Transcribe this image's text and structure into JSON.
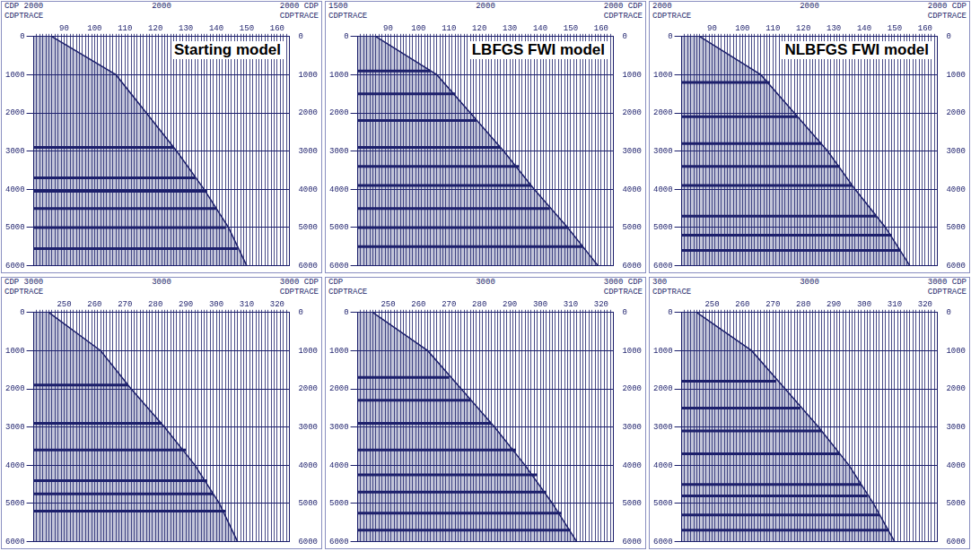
{
  "chart_data": [
    {
      "type": "line",
      "title": "Starting model",
      "header": {
        "left": "CDP 2000",
        "center": "2000",
        "right": "2000 CDP"
      },
      "x_label": "CDPTRACE",
      "xlim": [
        80,
        164
      ],
      "xticks": [
        90,
        100,
        110,
        120,
        130,
        140,
        150,
        160
      ],
      "traces": [
        81,
        82,
        83,
        84,
        85,
        86,
        87,
        88,
        89,
        90,
        91,
        92,
        93,
        94,
        95,
        96,
        97,
        98,
        99,
        100,
        101,
        102,
        103,
        104,
        105,
        106,
        107,
        108,
        109,
        110,
        111,
        112,
        113,
        114,
        115,
        116,
        117,
        118,
        119,
        120,
        121,
        122,
        123,
        124,
        125,
        126,
        127,
        128,
        129,
        130,
        131,
        132,
        133,
        134,
        135,
        136,
        137,
        138,
        139,
        140,
        141,
        142,
        143,
        144,
        145,
        146,
        147,
        148,
        149,
        150,
        151,
        152,
        153,
        154,
        155,
        156,
        157,
        158,
        159,
        160,
        161,
        162,
        163
      ],
      "ylim": [
        0,
        6000
      ],
      "yticks": [
        0,
        1000,
        2000,
        3000,
        4000,
        5000,
        6000
      ],
      "y2lim": [
        0,
        6000
      ],
      "y2ticks": [
        0,
        1000,
        2000,
        3000,
        4000,
        5000,
        6000
      ],
      "grid": true,
      "color": "#1c1f6b",
      "mute": {
        "x": [
          86,
          107,
          117,
          127,
          136,
          144,
          150
        ],
        "y": [
          0,
          1000,
          2000,
          3000,
          4000,
          5000,
          6000
        ]
      },
      "events": [
        {
          "y": 2900,
          "x_end": 126
        },
        {
          "y": 3700,
          "x_end": 133
        },
        {
          "y": 4050,
          "x_end": 137
        },
        {
          "y": 4500,
          "x_end": 140
        },
        {
          "y": 5000,
          "x_end": 143
        },
        {
          "y": 5550,
          "x_end": 147
        }
      ]
    },
    {
      "type": "line",
      "title": "LBFGS FWI  model",
      "header": {
        "left": "1500",
        "center": "2000",
        "right": "2000 CDP"
      },
      "x_label": "CDPTRACE",
      "xlim": [
        80,
        164
      ],
      "xticks": [
        90,
        100,
        110,
        120,
        130,
        140,
        150,
        160
      ],
      "traces": [
        81,
        82,
        83,
        84,
        85,
        86,
        87,
        88,
        89,
        90,
        91,
        92,
        93,
        94,
        95,
        96,
        97,
        98,
        99,
        100,
        101,
        102,
        103,
        104,
        105,
        106,
        107,
        108,
        109,
        110,
        111,
        112,
        113,
        114,
        115,
        116,
        117,
        118,
        119,
        120,
        121,
        122,
        123,
        124,
        125,
        126,
        127,
        128,
        129,
        130,
        131,
        132,
        133,
        134,
        135,
        136,
        137,
        138,
        139,
        140,
        141,
        142,
        143,
        144,
        145,
        146,
        147,
        148,
        149,
        150,
        151,
        152,
        153,
        154,
        155,
        156,
        157,
        158,
        159,
        160,
        161,
        162,
        163
      ],
      "ylim": [
        0,
        6000
      ],
      "yticks": [
        0,
        1000,
        2000,
        3000,
        4000,
        5000,
        6000
      ],
      "y2lim": [
        0,
        6000
      ],
      "y2ticks": [
        0,
        1000,
        2000,
        3000,
        4000,
        5000,
        6000
      ],
      "grid": true,
      "color": "#1c1f6b",
      "mute": {
        "x": [
          86,
          106,
          117,
          128,
          138,
          149,
          159
        ],
        "y": [
          0,
          1000,
          2000,
          3000,
          4000,
          5000,
          6000
        ]
      },
      "events": [
        {
          "y": 900,
          "x_end": 104
        },
        {
          "y": 1500,
          "x_end": 112
        },
        {
          "y": 2200,
          "x_end": 119
        },
        {
          "y": 2900,
          "x_end": 127
        },
        {
          "y": 3400,
          "x_end": 133
        },
        {
          "y": 3900,
          "x_end": 137
        },
        {
          "y": 4500,
          "x_end": 143
        },
        {
          "y": 5000,
          "x_end": 149
        },
        {
          "y": 5500,
          "x_end": 154
        }
      ]
    },
    {
      "type": "line",
      "title": "NLBFGS FWI model",
      "header": {
        "left": "2000",
        "center": "2000",
        "right": "2000 CDP"
      },
      "x_label": "CDPTRACE",
      "xlim": [
        80,
        164
      ],
      "xticks": [
        90,
        100,
        110,
        120,
        130,
        140,
        150,
        160
      ],
      "traces": [
        81,
        82,
        83,
        84,
        85,
        86,
        87,
        88,
        89,
        90,
        91,
        92,
        93,
        94,
        95,
        96,
        97,
        98,
        99,
        100,
        101,
        102,
        103,
        104,
        105,
        106,
        107,
        108,
        109,
        110,
        111,
        112,
        113,
        114,
        115,
        116,
        117,
        118,
        119,
        120,
        121,
        122,
        123,
        124,
        125,
        126,
        127,
        128,
        129,
        130,
        131,
        132,
        133,
        134,
        135,
        136,
        137,
        138,
        139,
        140,
        141,
        142,
        143,
        144,
        145,
        146,
        147,
        148,
        149,
        150,
        151,
        152,
        153,
        154,
        155,
        156,
        157,
        158,
        159,
        160,
        161,
        162,
        163
      ],
      "ylim": [
        0,
        6000
      ],
      "yticks": [
        0,
        1000,
        2000,
        3000,
        4000,
        5000,
        6000
      ],
      "y2lim": [
        0,
        6000
      ],
      "y2ticks": [
        0,
        1000,
        2000,
        3000,
        4000,
        5000,
        6000
      ],
      "grid": true,
      "color": "#1c1f6b",
      "mute": {
        "x": [
          86,
          106,
          117,
          128,
          137,
          147,
          155
        ],
        "y": [
          0,
          1000,
          2000,
          3000,
          4000,
          5000,
          6000
        ]
      },
      "events": [
        {
          "y": 1200,
          "x_end": 109
        },
        {
          "y": 2100,
          "x_end": 118
        },
        {
          "y": 2800,
          "x_end": 126
        },
        {
          "y": 3400,
          "x_end": 132
        },
        {
          "y": 3900,
          "x_end": 136
        },
        {
          "y": 4700,
          "x_end": 144
        },
        {
          "y": 5200,
          "x_end": 149
        },
        {
          "y": 5600,
          "x_end": 152
        }
      ]
    },
    {
      "type": "line",
      "header": {
        "left": "CDP 3000",
        "center": "3000",
        "right": "3000 CDP"
      },
      "x_label": "CDPTRACE",
      "xlim": [
        240,
        324
      ],
      "xticks": [
        250,
        260,
        270,
        280,
        290,
        300,
        310,
        320
      ],
      "traces": [
        241,
        242,
        243,
        244,
        245,
        246,
        247,
        248,
        249,
        250,
        251,
        252,
        253,
        254,
        255,
        256,
        257,
        258,
        259,
        260,
        261,
        262,
        263,
        264,
        265,
        266,
        267,
        268,
        269,
        270,
        271,
        272,
        273,
        274,
        275,
        276,
        277,
        278,
        279,
        280,
        281,
        282,
        283,
        284,
        285,
        286,
        287,
        288,
        289,
        290,
        291,
        292,
        293,
        294,
        295,
        296,
        297,
        298,
        299,
        300,
        301,
        302,
        303,
        304,
        305,
        306,
        307,
        308,
        309,
        310,
        311,
        312,
        313,
        314,
        315,
        316,
        317,
        318,
        319,
        320,
        321,
        322,
        323
      ],
      "ylim": [
        0,
        6000
      ],
      "yticks": [
        0,
        1000,
        2000,
        3000,
        4000,
        5000,
        6000
      ],
      "y2lim": [
        0,
        6000
      ],
      "y2ticks": [
        0,
        1000,
        2000,
        3000,
        4000,
        5000,
        6000
      ],
      "grid": true,
      "color": "#1c1f6b",
      "mute": {
        "x": [
          245,
          262,
          272,
          283,
          293,
          301,
          307
        ],
        "y": [
          0,
          1000,
          2000,
          3000,
          4000,
          5000,
          6000
        ]
      },
      "events": [
        {
          "y": 1900,
          "x_end": 271
        },
        {
          "y": 2900,
          "x_end": 282
        },
        {
          "y": 3600,
          "x_end": 290
        },
        {
          "y": 4400,
          "x_end": 297
        },
        {
          "y": 4750,
          "x_end": 299
        },
        {
          "y": 5200,
          "x_end": 303
        }
      ]
    },
    {
      "type": "line",
      "header": {
        "left": "CDP",
        "center": "3000",
        "right": "3000 CDP"
      },
      "x_label": "CDPTRACE",
      "xlim": [
        240,
        324
      ],
      "xticks": [
        250,
        260,
        270,
        280,
        290,
        300,
        310,
        320
      ],
      "traces": [
        241,
        242,
        243,
        244,
        245,
        246,
        247,
        248,
        249,
        250,
        251,
        252,
        253,
        254,
        255,
        256,
        257,
        258,
        259,
        260,
        261,
        262,
        263,
        264,
        265,
        266,
        267,
        268,
        269,
        270,
        271,
        272,
        273,
        274,
        275,
        276,
        277,
        278,
        279,
        280,
        281,
        282,
        283,
        284,
        285,
        286,
        287,
        288,
        289,
        290,
        291,
        292,
        293,
        294,
        295,
        296,
        297,
        298,
        299,
        300,
        301,
        302,
        303,
        304,
        305,
        306,
        307,
        308,
        309,
        310,
        311,
        312,
        313,
        314,
        315,
        316,
        317,
        318,
        319,
        320,
        321,
        322,
        323
      ],
      "ylim": [
        0,
        6000
      ],
      "yticks": [
        0,
        1000,
        2000,
        3000,
        4000,
        5000,
        6000
      ],
      "y2lim": [
        0,
        6000
      ],
      "y2ticks": [
        0,
        1000,
        2000,
        3000,
        4000,
        5000,
        6000
      ],
      "grid": true,
      "color": "#1c1f6b",
      "mute": {
        "x": [
          245,
          263,
          274,
          285,
          295,
          304,
          312
        ],
        "y": [
          0,
          1000,
          2000,
          3000,
          4000,
          5000,
          6000
        ]
      },
      "events": [
        {
          "y": 1700,
          "x_end": 270
        },
        {
          "y": 2300,
          "x_end": 277
        },
        {
          "y": 2900,
          "x_end": 284
        },
        {
          "y": 3600,
          "x_end": 292
        },
        {
          "y": 4250,
          "x_end": 299
        },
        {
          "y": 4700,
          "x_end": 302
        },
        {
          "y": 5250,
          "x_end": 307
        },
        {
          "y": 5700,
          "x_end": 310
        }
      ]
    },
    {
      "type": "line",
      "header": {
        "left": "300",
        "center": "3000",
        "right": "3000 CDP"
      },
      "x_label": "CDPTRACE",
      "xlim": [
        240,
        324
      ],
      "xticks": [
        250,
        260,
        270,
        280,
        290,
        300,
        310,
        320
      ],
      "traces": [
        241,
        242,
        243,
        244,
        245,
        246,
        247,
        248,
        249,
        250,
        251,
        252,
        253,
        254,
        255,
        256,
        257,
        258,
        259,
        260,
        261,
        262,
        263,
        264,
        265,
        266,
        267,
        268,
        269,
        270,
        271,
        272,
        273,
        274,
        275,
        276,
        277,
        278,
        279,
        280,
        281,
        282,
        283,
        284,
        285,
        286,
        287,
        288,
        289,
        290,
        291,
        292,
        293,
        294,
        295,
        296,
        297,
        298,
        299,
        300,
        301,
        302,
        303,
        304,
        305,
        306,
        307,
        308,
        309,
        310,
        311,
        312,
        313,
        314,
        315,
        316,
        317,
        318,
        319,
        320,
        321,
        322,
        323
      ],
      "ylim": [
        0,
        6000
      ],
      "yticks": [
        0,
        1000,
        2000,
        3000,
        4000,
        5000,
        6000
      ],
      "y2lim": [
        0,
        6000
      ],
      "y2ticks": [
        0,
        1000,
        2000,
        3000,
        4000,
        5000,
        6000
      ],
      "grid": true,
      "color": "#1c1f6b",
      "mute": {
        "x": [
          245,
          263,
          274,
          285,
          295,
          303,
          310
        ],
        "y": [
          0,
          1000,
          2000,
          3000,
          4000,
          5000,
          6000
        ]
      },
      "events": [
        {
          "y": 1800,
          "x_end": 271
        },
        {
          "y": 2500,
          "x_end": 279
        },
        {
          "y": 3100,
          "x_end": 286
        },
        {
          "y": 3700,
          "x_end": 292
        },
        {
          "y": 4500,
          "x_end": 299
        },
        {
          "y": 4800,
          "x_end": 301
        },
        {
          "y": 5300,
          "x_end": 305
        },
        {
          "y": 5700,
          "x_end": 308
        }
      ]
    }
  ]
}
